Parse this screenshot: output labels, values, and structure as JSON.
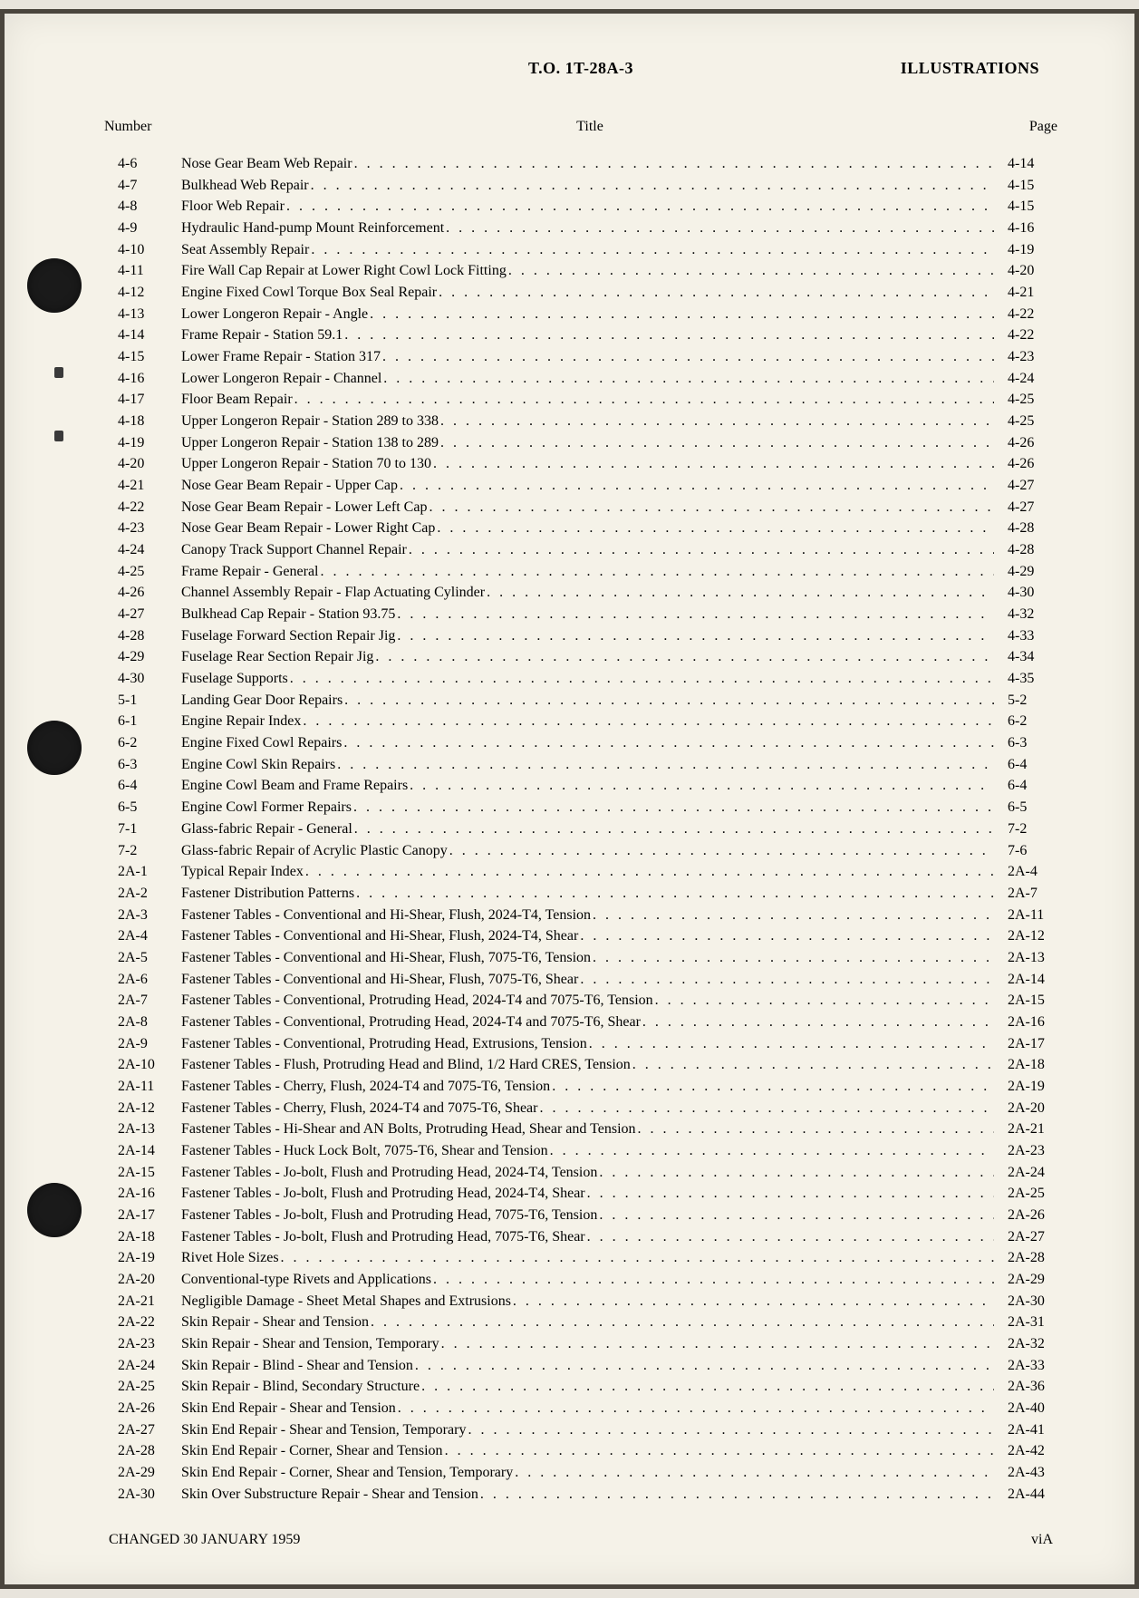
{
  "header": {
    "center": "T.O. 1T-28A-3",
    "right": "ILLUSTRATIONS"
  },
  "columns": {
    "number": "Number",
    "title": "Title",
    "page": "Page"
  },
  "entries": [
    {
      "number": "4-6",
      "title": "Nose Gear Beam Web Repair",
      "page": "4-14"
    },
    {
      "number": "4-7",
      "title": "Bulkhead Web Repair",
      "page": "4-15"
    },
    {
      "number": "4-8",
      "title": "Floor Web Repair",
      "page": "4-15"
    },
    {
      "number": "4-9",
      "title": "Hydraulic Hand-pump Mount Reinforcement",
      "page": "4-16"
    },
    {
      "number": "4-10",
      "title": "Seat Assembly Repair",
      "page": "4-19"
    },
    {
      "number": "4-11",
      "title": "Fire Wall Cap Repair at Lower Right Cowl Lock Fitting",
      "page": "4-20"
    },
    {
      "number": "4-12",
      "title": "Engine Fixed Cowl Torque Box Seal Repair",
      "page": "4-21"
    },
    {
      "number": "4-13",
      "title": "Lower Longeron Repair - Angle",
      "page": "4-22"
    },
    {
      "number": "4-14",
      "title": "Frame Repair - Station 59.1",
      "page": "4-22"
    },
    {
      "number": "4-15",
      "title": "Lower Frame Repair - Station 317",
      "page": "4-23"
    },
    {
      "number": "4-16",
      "title": "Lower Longeron Repair - Channel",
      "page": "4-24"
    },
    {
      "number": "4-17",
      "title": "Floor Beam Repair",
      "page": "4-25"
    },
    {
      "number": "4-18",
      "title": "Upper Longeron Repair - Station 289 to 338",
      "page": "4-25"
    },
    {
      "number": "4-19",
      "title": "Upper Longeron Repair - Station 138 to 289",
      "page": "4-26"
    },
    {
      "number": "4-20",
      "title": "Upper Longeron Repair - Station 70 to 130",
      "page": "4-26"
    },
    {
      "number": "4-21",
      "title": "Nose Gear Beam Repair - Upper Cap",
      "page": "4-27"
    },
    {
      "number": "4-22",
      "title": "Nose Gear Beam Repair - Lower Left Cap",
      "page": "4-27"
    },
    {
      "number": "4-23",
      "title": "Nose Gear Beam Repair - Lower Right Cap",
      "page": "4-28"
    },
    {
      "number": "4-24",
      "title": "Canopy Track Support Channel Repair",
      "page": "4-28"
    },
    {
      "number": "4-25",
      "title": "Frame Repair - General",
      "page": "4-29"
    },
    {
      "number": "4-26",
      "title": "Channel Assembly Repair - Flap Actuating Cylinder",
      "page": "4-30"
    },
    {
      "number": "4-27",
      "title": "Bulkhead Cap Repair - Station 93.75",
      "page": "4-32"
    },
    {
      "number": "4-28",
      "title": "Fuselage Forward Section Repair Jig",
      "page": "4-33"
    },
    {
      "number": "4-29",
      "title": "Fuselage Rear Section Repair Jig",
      "page": "4-34"
    },
    {
      "number": "4-30",
      "title": "Fuselage Supports",
      "page": "4-35"
    },
    {
      "number": "5-1",
      "title": "Landing Gear Door Repairs",
      "page": "5-2"
    },
    {
      "number": "6-1",
      "title": "Engine Repair Index",
      "page": "6-2"
    },
    {
      "number": "6-2",
      "title": "Engine Fixed Cowl Repairs",
      "page": "6-3"
    },
    {
      "number": "6-3",
      "title": "Engine Cowl Skin Repairs",
      "page": "6-4"
    },
    {
      "number": "6-4",
      "title": "Engine Cowl Beam and Frame Repairs",
      "page": "6-4"
    },
    {
      "number": "6-5",
      "title": "Engine Cowl Former Repairs",
      "page": "6-5"
    },
    {
      "number": "7-1",
      "title": "Glass-fabric Repair - General",
      "page": "7-2"
    },
    {
      "number": "7-2",
      "title": "Glass-fabric Repair of Acrylic Plastic Canopy",
      "page": "7-6"
    },
    {
      "number": "2A-1",
      "title": "Typical Repair Index",
      "page": "2A-4"
    },
    {
      "number": "2A-2",
      "title": "Fastener Distribution Patterns",
      "page": "2A-7"
    },
    {
      "number": "2A-3",
      "title": "Fastener Tables - Conventional and Hi-Shear, Flush, 2024-T4, Tension",
      "page": "2A-11"
    },
    {
      "number": "2A-4",
      "title": "Fastener Tables - Conventional and Hi-Shear, Flush, 2024-T4, Shear",
      "page": "2A-12"
    },
    {
      "number": "2A-5",
      "title": "Fastener Tables - Conventional and Hi-Shear, Flush, 7075-T6, Tension",
      "page": "2A-13"
    },
    {
      "number": "2A-6",
      "title": "Fastener Tables - Conventional and Hi-Shear, Flush, 7075-T6, Shear",
      "page": "2A-14"
    },
    {
      "number": "2A-7",
      "title": "Fastener Tables - Conventional, Protruding Head, 2024-T4 and 7075-T6, Tension",
      "page": "2A-15"
    },
    {
      "number": "2A-8",
      "title": "Fastener Tables - Conventional, Protruding Head, 2024-T4 and 7075-T6, Shear",
      "page": "2A-16"
    },
    {
      "number": "2A-9",
      "title": "Fastener Tables - Conventional, Protruding Head, Extrusions, Tension",
      "page": "2A-17"
    },
    {
      "number": "2A-10",
      "title": "Fastener Tables - Flush, Protruding Head and Blind, 1/2 Hard CRES, Tension",
      "page": "2A-18"
    },
    {
      "number": "2A-11",
      "title": "Fastener Tables - Cherry, Flush, 2024-T4 and 7075-T6, Tension",
      "page": "2A-19"
    },
    {
      "number": "2A-12",
      "title": "Fastener Tables - Cherry, Flush, 2024-T4 and 7075-T6, Shear",
      "page": "2A-20"
    },
    {
      "number": "2A-13",
      "title": "Fastener Tables - Hi-Shear and AN Bolts, Protruding Head, Shear and Tension",
      "page": "2A-21"
    },
    {
      "number": "2A-14",
      "title": "Fastener Tables - Huck Lock Bolt, 7075-T6, Shear and Tension",
      "page": "2A-23"
    },
    {
      "number": "2A-15",
      "title": "Fastener Tables - Jo-bolt, Flush and Protruding Head, 2024-T4, Tension",
      "page": "2A-24"
    },
    {
      "number": "2A-16",
      "title": "Fastener Tables - Jo-bolt, Flush and Protruding Head, 2024-T4, Shear",
      "page": "2A-25"
    },
    {
      "number": "2A-17",
      "title": "Fastener Tables - Jo-bolt, Flush and Protruding Head, 7075-T6, Tension",
      "page": "2A-26"
    },
    {
      "number": "2A-18",
      "title": "Fastener Tables - Jo-bolt, Flush and Protruding Head, 7075-T6, Shear",
      "page": "2A-27"
    },
    {
      "number": "2A-19",
      "title": "Rivet Hole Sizes",
      "page": "2A-28"
    },
    {
      "number": "2A-20",
      "title": "Conventional-type Rivets and Applications",
      "page": "2A-29"
    },
    {
      "number": "2A-21",
      "title": "Negligible Damage - Sheet Metal Shapes and Extrusions",
      "page": "2A-30"
    },
    {
      "number": "2A-22",
      "title": "Skin Repair - Shear and Tension",
      "page": "2A-31"
    },
    {
      "number": "2A-23",
      "title": "Skin Repair - Shear and Tension, Temporary",
      "page": "2A-32"
    },
    {
      "number": "2A-24",
      "title": "Skin Repair - Blind - Shear and Tension",
      "page": "2A-33"
    },
    {
      "number": "2A-25",
      "title": "Skin Repair - Blind, Secondary Structure",
      "page": "2A-36"
    },
    {
      "number": "2A-26",
      "title": "Skin End Repair - Shear and Tension",
      "page": "2A-40"
    },
    {
      "number": "2A-27",
      "title": "Skin End Repair - Shear and Tension, Temporary",
      "page": "2A-41"
    },
    {
      "number": "2A-28",
      "title": "Skin End Repair - Corner, Shear and Tension",
      "page": "2A-42"
    },
    {
      "number": "2A-29",
      "title": "Skin End Repair - Corner, Shear and Tension, Temporary",
      "page": "2A-43"
    },
    {
      "number": "2A-30",
      "title": "Skin Over Substructure Repair - Shear and Tension",
      "page": "2A-44"
    }
  ],
  "footer": {
    "left": "CHANGED 30 JANUARY 1959",
    "right": "viA"
  }
}
